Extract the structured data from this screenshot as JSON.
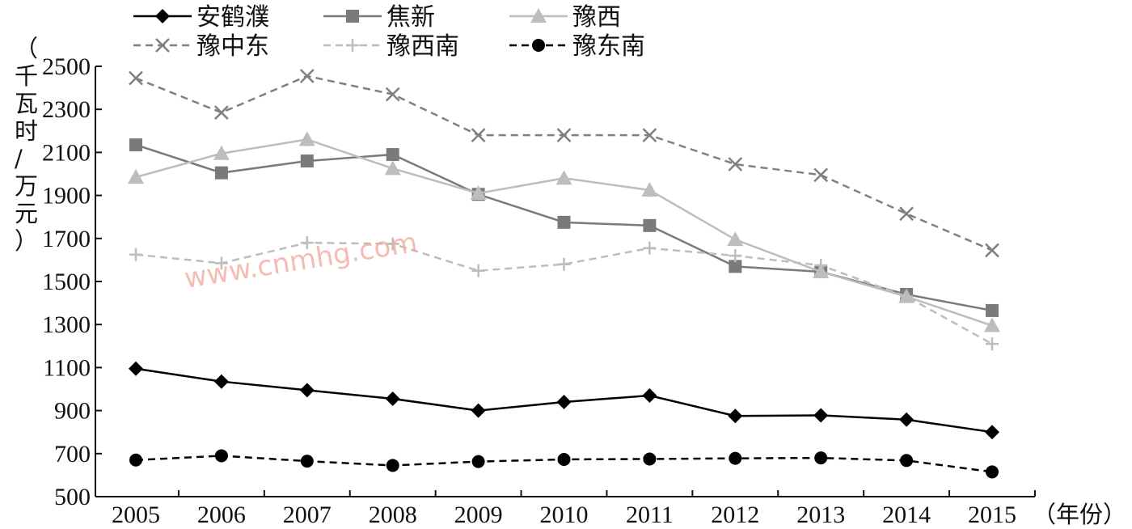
{
  "chart_data": {
    "type": "line",
    "title": "",
    "xlabel": "（年份）",
    "ylabel": "（千瓦时/万元）",
    "x": [
      2005,
      2006,
      2007,
      2008,
      2009,
      2010,
      2011,
      2012,
      2013,
      2014,
      2015
    ],
    "xticks": [
      "2005",
      "2006",
      "2007",
      "2008",
      "2009",
      "2010",
      "2011",
      "2012",
      "2013",
      "2014",
      "2015"
    ],
    "ylim": [
      500,
      2500
    ],
    "yticks": [
      500,
      700,
      900,
      1100,
      1300,
      1500,
      1700,
      1900,
      2100,
      2300,
      2500
    ],
    "yticklabels": [
      "500",
      "700",
      "900",
      "1100",
      "1300",
      "1500",
      "1700",
      "1900",
      "2100",
      "2300",
      "2500"
    ],
    "grid": false,
    "legend_position": "top-left",
    "series": [
      {
        "name": "安鹤濮",
        "values": [
          1095,
          1035,
          995,
          955,
          900,
          940,
          970,
          875,
          878,
          858,
          800
        ],
        "color": "#000000",
        "marker": "diamond",
        "dash": "solid"
      },
      {
        "name": "焦新",
        "values": [
          2135,
          2005,
          2060,
          2090,
          1905,
          1775,
          1760,
          1570,
          1545,
          1440,
          1365
        ],
        "color": "#7a7a7a",
        "marker": "square",
        "dash": "solid"
      },
      {
        "name": "豫西",
        "values": [
          1985,
          2095,
          2160,
          2025,
          1910,
          1980,
          1925,
          1695,
          1545,
          1430,
          1295
        ],
        "color": "#bdbdbd",
        "marker": "triangle",
        "dash": "solid"
      },
      {
        "name": "豫中东",
        "values": [
          2445,
          2285,
          2455,
          2370,
          2180,
          2180,
          2180,
          2045,
          1995,
          1815,
          1645
        ],
        "color": "#808080",
        "marker": "x",
        "dash": "dashed"
      },
      {
        "name": "豫西南",
        "values": [
          1625,
          1585,
          1680,
          1675,
          1550,
          1580,
          1655,
          1620,
          1575,
          1430,
          1210
        ],
        "color": "#bdbdbd",
        "marker": "plus",
        "dash": "dashed"
      },
      {
        "name": "豫东南",
        "values": [
          670,
          690,
          665,
          645,
          663,
          673,
          675,
          678,
          680,
          668,
          615
        ],
        "color": "#000000",
        "marker": "circle",
        "dash": "dashed"
      }
    ]
  },
  "watermark": "www.cnmhg.com"
}
